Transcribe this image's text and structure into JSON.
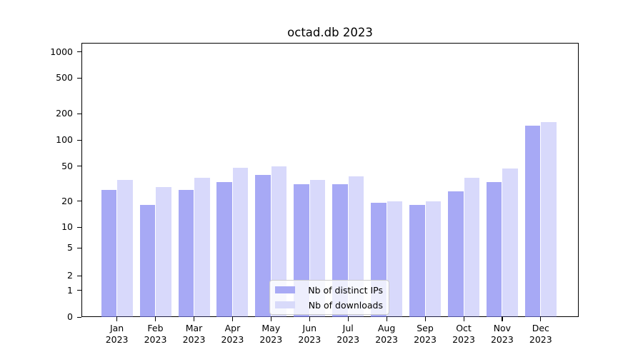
{
  "title": "octad.db 2023",
  "chart_data": {
    "type": "bar",
    "title": "octad.db 2023",
    "categories": [
      "Jan",
      "Feb",
      "Mar",
      "Apr",
      "May",
      "Jun",
      "Jul",
      "Aug",
      "Sep",
      "Oct",
      "Nov",
      "Dec"
    ],
    "category_year": "2023",
    "series": [
      {
        "name": "Nb of distinct IPs",
        "color": "rgba(122,125,240,0.66)",
        "legend_color": "#a8aaf5",
        "values": [
          27,
          18,
          27,
          33,
          40,
          31,
          31,
          19,
          18,
          26,
          33,
          146
        ]
      },
      {
        "name": "Nb of downloads",
        "color": "rgba(122,125,240,0.29)",
        "legend_color": "#d8dafa",
        "values": [
          35,
          29,
          37,
          48,
          50,
          35,
          38,
          20,
          20,
          37,
          47,
          160
        ]
      }
    ],
    "ylabel": "",
    "xlabel": "",
    "yscale": "log-like with 0 baseline",
    "y_ticks": [
      0,
      1,
      2,
      5,
      10,
      20,
      50,
      100,
      200,
      500,
      1000
    ],
    "ylim": [
      0,
      1500
    ],
    "grid": "horizontal, major decade lines darker, minor log lines faint",
    "legend_position": "bottom-center inside plot"
  }
}
